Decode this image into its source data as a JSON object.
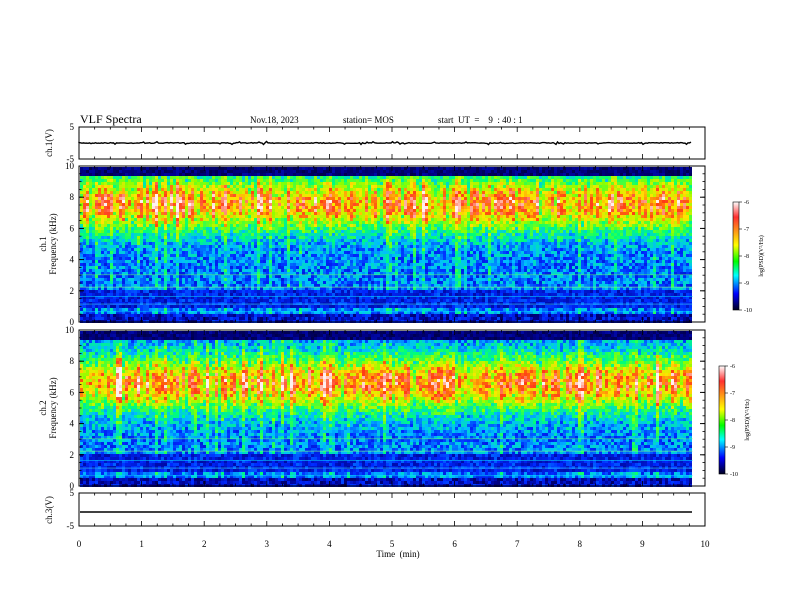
{
  "header": {
    "title": "VLF Spectra",
    "date": "Nov.18, 2023",
    "station": "station= MOS",
    "start": "start  UT  =    9  : 40 : 1"
  },
  "colorbar": {
    "label": "log(PSD)(V²/Hz)",
    "ticks": [
      "-6",
      "-7",
      "-8",
      "-9",
      "-10"
    ],
    "colors": [
      "#ffffff",
      "#ff0000",
      "#ffff00",
      "#00ff00",
      "#00ffff",
      "#0000ff",
      "#000000"
    ]
  },
  "chart_data": [
    {
      "type": "line",
      "name": "ch1_waveform",
      "ylabel": "ch.1(V)",
      "ylim": [
        -5,
        5
      ],
      "yticks": [
        "5",
        "-5"
      ],
      "x": [
        0,
        9.8
      ],
      "y": [
        0,
        0
      ]
    },
    {
      "type": "heatmap",
      "name": "ch1_spectrogram",
      "ylabel": "ch.1\nFrequency (kHz)",
      "ylim": [
        0,
        10
      ],
      "yticks": [
        "0",
        "2",
        "4",
        "6",
        "8",
        "10"
      ],
      "xlim": [
        0,
        10
      ],
      "value_range": [
        -10,
        -6
      ]
    },
    {
      "type": "heatmap",
      "name": "ch2_spectrogram",
      "ylabel": "ch.2\nFrequency (kHz)",
      "ylim": [
        0,
        10
      ],
      "yticks": [
        "0",
        "2",
        "4",
        "6",
        "8",
        "10"
      ],
      "xlim": [
        0,
        10
      ],
      "value_range": [
        -10,
        -6
      ]
    },
    {
      "type": "line",
      "name": "ch3_waveform",
      "ylabel": "ch.3(V)",
      "xlabel": "Time  (min)",
      "ylim": [
        -5,
        5
      ],
      "yticks": [
        "5",
        "-5"
      ],
      "xticks": [
        "0",
        "1",
        "2",
        "3",
        "4",
        "5",
        "6",
        "7",
        "8",
        "9",
        "10"
      ],
      "xlim": [
        0,
        10
      ],
      "x": [
        0,
        9.8
      ],
      "y": [
        0,
        0
      ]
    }
  ]
}
